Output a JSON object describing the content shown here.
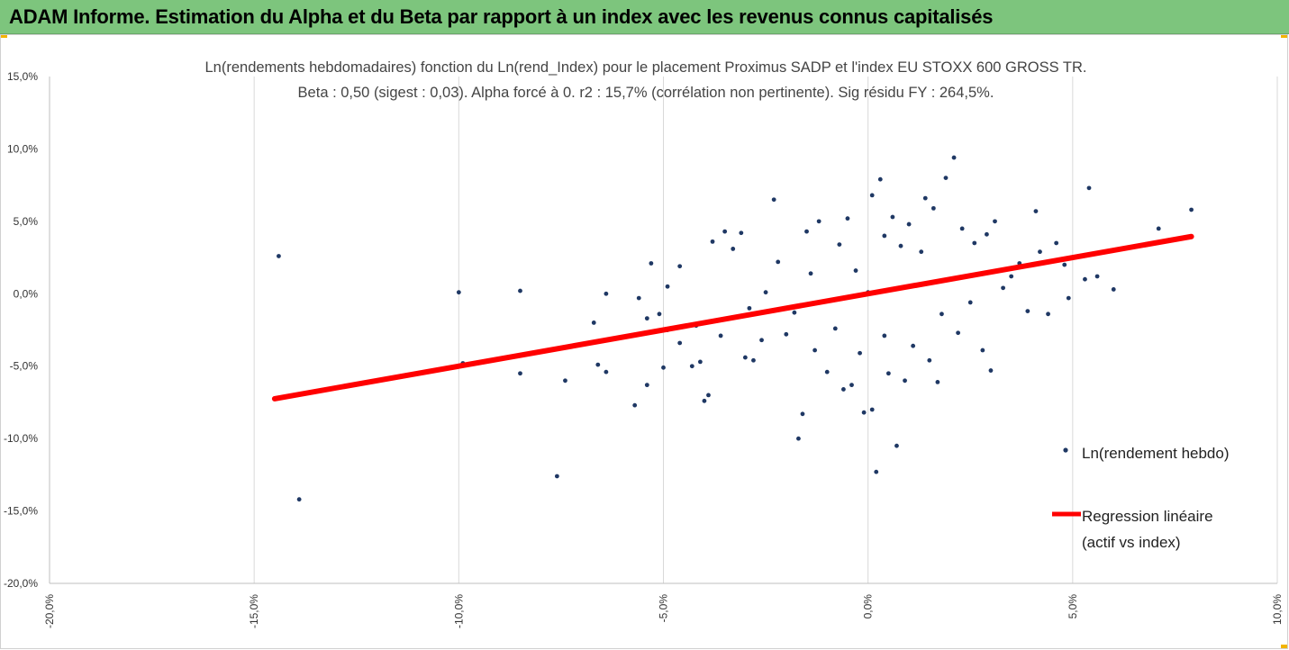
{
  "banner": {
    "title": "ADAM Informe. Estimation du Alpha et du Beta par rapport à un index avec les revenus connus capitalisés",
    "background": "#7dc57d"
  },
  "chart_data": {
    "type": "scatter",
    "title_lines": [
      "Ln(rendements hebdomadaires) fonction du Ln(rend_Index) pour le placement Proximus SADP et l'index EU STOXX 600 GROSS TR.",
      "Beta : 0,50 (sigest : 0,03). Alpha forcé à 0. r2 : 15,7% (corrélation non pertinente). Sig résidu FY : 264,5%."
    ],
    "xlim": [
      -20,
      10
    ],
    "ylim": [
      -20,
      15
    ],
    "x_ticks": [
      -20,
      -15,
      -10,
      -5,
      0,
      5,
      10
    ],
    "x_tick_labels": [
      "-20,0%",
      "-15,0%",
      "-10,0%",
      "-5,0%",
      "0,0%",
      "5,0%",
      "10,0%"
    ],
    "y_ticks": [
      15,
      10,
      5,
      0,
      -5,
      -10,
      -15,
      -20
    ],
    "y_tick_labels": [
      "15,0%",
      "10,0%",
      "5,0%",
      "0,0%",
      "-5,0%",
      "-10,0%",
      "-15,0%",
      "-20,0%"
    ],
    "grid": "vertical",
    "legend_placement": "right",
    "series": [
      {
        "name": "Ln(rendement hebdo)",
        "kind": "scatter",
        "color": "#1f3864",
        "points": [
          [
            -14.4,
            2.6
          ],
          [
            -13.9,
            -14.2
          ],
          [
            -10.0,
            0.1
          ],
          [
            -9.9,
            -4.8
          ],
          [
            -8.5,
            0.2
          ],
          [
            -8.5,
            -5.5
          ],
          [
            -7.6,
            -12.6
          ],
          [
            -7.4,
            -6.0
          ],
          [
            -6.7,
            -2.0
          ],
          [
            -6.6,
            -4.9
          ],
          [
            -6.4,
            0.0
          ],
          [
            -6.4,
            -5.4
          ],
          [
            -5.7,
            -7.7
          ],
          [
            -5.6,
            -2.8
          ],
          [
            -5.6,
            -0.3
          ],
          [
            -5.4,
            -6.3
          ],
          [
            -5.4,
            -1.7
          ],
          [
            -5.3,
            2.1
          ],
          [
            -5.1,
            -1.4
          ],
          [
            -5.0,
            -5.1
          ],
          [
            -4.9,
            0.5
          ],
          [
            -4.9,
            -2.5
          ],
          [
            -4.6,
            -3.4
          ],
          [
            -4.6,
            1.9
          ],
          [
            -4.3,
            -5.0
          ],
          [
            -4.2,
            -2.2
          ],
          [
            -4.1,
            -4.7
          ],
          [
            -4.0,
            -7.4
          ],
          [
            -3.9,
            -7.0
          ],
          [
            -3.8,
            3.6
          ],
          [
            -3.6,
            -2.9
          ],
          [
            -3.5,
            4.3
          ],
          [
            -3.3,
            3.1
          ],
          [
            -3.1,
            4.2
          ],
          [
            -3.0,
            -4.4
          ],
          [
            -2.9,
            -1.0
          ],
          [
            -2.8,
            -4.6
          ],
          [
            -2.6,
            -3.2
          ],
          [
            -2.5,
            0.1
          ],
          [
            -2.3,
            6.5
          ],
          [
            -2.2,
            2.2
          ],
          [
            -2.0,
            -2.8
          ],
          [
            -1.8,
            -1.3
          ],
          [
            -1.7,
            -10.0
          ],
          [
            -1.6,
            -8.3
          ],
          [
            -1.5,
            4.3
          ],
          [
            -1.4,
            1.4
          ],
          [
            -1.3,
            -3.9
          ],
          [
            -1.2,
            5.0
          ],
          [
            -1.0,
            -5.4
          ],
          [
            -0.8,
            -2.4
          ],
          [
            -0.7,
            3.4
          ],
          [
            -0.6,
            -6.6
          ],
          [
            -0.5,
            5.2
          ],
          [
            -0.4,
            -6.3
          ],
          [
            -0.3,
            1.6
          ],
          [
            -0.2,
            -4.1
          ],
          [
            -0.1,
            -8.2
          ],
          [
            0.0,
            0.1
          ],
          [
            0.1,
            -8.0
          ],
          [
            0.1,
            6.8
          ],
          [
            0.2,
            -12.3
          ],
          [
            0.3,
            7.9
          ],
          [
            0.4,
            4.0
          ],
          [
            0.4,
            -2.9
          ],
          [
            0.5,
            -5.5
          ],
          [
            0.6,
            5.3
          ],
          [
            0.7,
            -10.5
          ],
          [
            0.8,
            3.3
          ],
          [
            0.9,
            -6.0
          ],
          [
            1.0,
            4.8
          ],
          [
            1.1,
            -3.6
          ],
          [
            1.3,
            2.9
          ],
          [
            1.4,
            6.6
          ],
          [
            1.5,
            -4.6
          ],
          [
            1.6,
            5.9
          ],
          [
            1.7,
            -6.1
          ],
          [
            1.8,
            -1.4
          ],
          [
            1.9,
            8.0
          ],
          [
            2.1,
            9.4
          ],
          [
            2.2,
            -2.7
          ],
          [
            2.3,
            4.5
          ],
          [
            2.5,
            -0.6
          ],
          [
            2.6,
            3.5
          ],
          [
            2.8,
            -3.9
          ],
          [
            2.9,
            4.1
          ],
          [
            3.0,
            -5.3
          ],
          [
            3.1,
            5.0
          ],
          [
            3.3,
            0.4
          ],
          [
            3.5,
            1.2
          ],
          [
            3.7,
            2.1
          ],
          [
            3.9,
            -1.2
          ],
          [
            4.1,
            5.7
          ],
          [
            4.2,
            2.9
          ],
          [
            4.4,
            -1.4
          ],
          [
            4.6,
            3.5
          ],
          [
            4.8,
            2.0
          ],
          [
            4.9,
            -0.3
          ],
          [
            5.3,
            1.0
          ],
          [
            5.4,
            7.3
          ],
          [
            5.6,
            1.2
          ],
          [
            6.0,
            0.3
          ],
          [
            7.1,
            4.5
          ],
          [
            7.9,
            5.8
          ]
        ]
      },
      {
        "name": "Regression linéaire\n(actif vs index)",
        "kind": "line",
        "color": "#ff0000",
        "points": [
          [
            -14.5,
            -7.25
          ],
          [
            7.9,
            3.95
          ]
        ]
      }
    ]
  }
}
